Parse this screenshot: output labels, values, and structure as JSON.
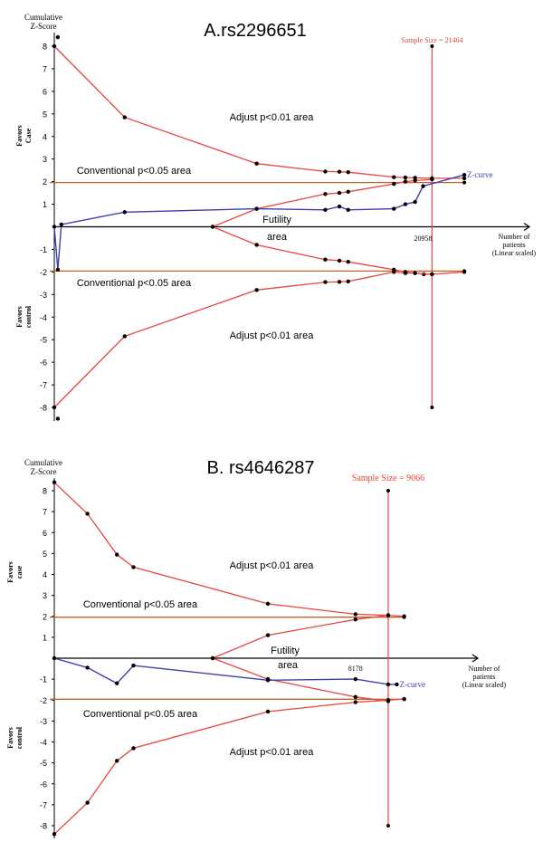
{
  "colors": {
    "boundary": "#e8453c",
    "zcurve": "#3b3fb0",
    "conventional": "#c0632c",
    "sample": "#e8453c",
    "axis": "#000000",
    "sample_label": "#e8453c",
    "zcurve_label": "#3b3fb0"
  },
  "chart_data": [
    {
      "type": "line",
      "title": "A.rs2296651",
      "ylabel": "Cumulative Z-Score",
      "xlabel": "Number of patients (Linear scaled)",
      "xlabel_lines": [
        "Number of",
        "patients",
        "(Linear scaled)"
      ],
      "ylabel_lines": [
        "Cumulative",
        "Z-Score"
      ],
      "favors_top": [
        "Favors",
        "Case"
      ],
      "favors_bottom": [
        "Favors",
        "control"
      ],
      "yticks": [
        8,
        7,
        6,
        5,
        4,
        3,
        2,
        1,
        -1,
        -2,
        -3,
        -4,
        -5,
        -6,
        -7,
        -8
      ],
      "ylim": [
        -8.5,
        8.5
      ],
      "xlim": [
        0,
        27000
      ],
      "x_tick_label": "20958",
      "x_tick_value": 20958,
      "sample_size_value": 21464,
      "sample_size_label": "Sample Size = 21464",
      "zcurve_label": "Z-curve",
      "area_labels": {
        "adjust_top": "Adjust p<0.01 area",
        "conv_top": "Conventional p<0.05 area",
        "futility": "Futility",
        "futility_area": "area",
        "conv_bottom": "Conventional p<0.05 area",
        "adjust_bottom": "Adjust p<0.01 area"
      },
      "conventional_z": 1.96,
      "conventional_end_x": 23300,
      "upper_boundary": [
        [
          0,
          8.0
        ],
        [
          4000,
          4.85
        ],
        [
          11500,
          2.8
        ],
        [
          15400,
          2.45
        ],
        [
          16200,
          2.44
        ],
        [
          16700,
          2.42
        ],
        [
          19300,
          2.2
        ],
        [
          19950,
          2.18
        ],
        [
          20500,
          2.17
        ],
        [
          21464,
          2.15
        ],
        [
          23300,
          2.15
        ]
      ],
      "lower_boundary": [
        [
          0,
          -8.0
        ],
        [
          4000,
          -4.85
        ],
        [
          11500,
          -2.8
        ],
        [
          15400,
          -2.45
        ],
        [
          16200,
          -2.44
        ],
        [
          16700,
          -2.42
        ],
        [
          19300,
          -2.0
        ],
        [
          19950,
          -2.05
        ],
        [
          20500,
          -2.05
        ],
        [
          21000,
          -2.1
        ],
        [
          21464,
          -2.1
        ],
        [
          23300,
          -2.0
        ]
      ],
      "futility_upper": [
        [
          9000,
          0.0
        ],
        [
          11500,
          0.8
        ],
        [
          15400,
          1.45
        ],
        [
          16200,
          1.5
        ],
        [
          16700,
          1.55
        ],
        [
          19300,
          1.9
        ],
        [
          19950,
          2.0
        ],
        [
          20500,
          2.05
        ],
        [
          21464,
          2.1
        ]
      ],
      "futility_lower": [
        [
          9000,
          0.0
        ],
        [
          11500,
          -0.8
        ],
        [
          15400,
          -1.45
        ],
        [
          16200,
          -1.5
        ],
        [
          16700,
          -1.55
        ],
        [
          19300,
          -1.9
        ],
        [
          19950,
          -2.0
        ],
        [
          20500,
          -2.05
        ],
        [
          21464,
          -2.1
        ]
      ],
      "zcurve": [
        [
          0,
          0.0
        ],
        [
          200,
          -1.9
        ],
        [
          400,
          0.1
        ],
        [
          4000,
          0.65
        ],
        [
          11500,
          0.8
        ],
        [
          15400,
          0.75
        ],
        [
          16200,
          0.9
        ],
        [
          16700,
          0.75
        ],
        [
          19300,
          0.8
        ],
        [
          19950,
          1.0
        ],
        [
          20500,
          1.1
        ],
        [
          20958,
          1.8
        ],
        [
          23300,
          2.3
        ]
      ],
      "extra_points": [
        [
          200,
          8.4
        ],
        [
          200,
          -8.5
        ]
      ]
    },
    {
      "type": "line",
      "title": "B. rs4646287",
      "ylabel": "Cumulative Z-Score",
      "xlabel": "Number of patients (Linear scaled)",
      "xlabel_lines": [
        "Number of",
        "patients",
        "(Linear scaled)"
      ],
      "ylabel_lines": [
        "Cumulative",
        "Z-Score"
      ],
      "favors_top": [
        "Favors",
        "case"
      ],
      "favors_bottom": [
        "Favors",
        "control"
      ],
      "yticks": [
        8,
        7,
        6,
        5,
        4,
        3,
        2,
        1,
        -1,
        -2,
        -3,
        -4,
        -5,
        -6,
        -7,
        -8
      ],
      "ylim": [
        -8.5,
        8.5
      ],
      "xlim": [
        0,
        11500
      ],
      "x_tick_label": "8178",
      "x_tick_value": 8178,
      "sample_size_value": 9066,
      "sample_size_label": "Sample Size = 9066",
      "zcurve_label": "Z-curve",
      "area_labels": {
        "adjust_top": "Adjust p<0.01 area",
        "conv_top": "Conventional p<0.05 area",
        "futility": "Futility",
        "futility_area": "area",
        "conv_bottom": "Conventional p<0.05 area",
        "adjust_bottom": "Adjust p<0.01 area"
      },
      "conventional_z": 1.96,
      "conventional_end_x": 9500,
      "upper_boundary": [
        [
          0,
          8.4
        ],
        [
          900,
          6.9
        ],
        [
          1700,
          4.95
        ],
        [
          2150,
          4.35
        ],
        [
          5800,
          2.6
        ],
        [
          8178,
          2.1
        ],
        [
          9066,
          2.05
        ],
        [
          9500,
          2.0
        ]
      ],
      "lower_boundary": [
        [
          0,
          -8.4
        ],
        [
          900,
          -6.9
        ],
        [
          1700,
          -4.9
        ],
        [
          2150,
          -4.3
        ],
        [
          5800,
          -2.55
        ],
        [
          8178,
          -2.1
        ],
        [
          9066,
          -2.0
        ],
        [
          9500,
          -1.95
        ]
      ],
      "futility_upper": [
        [
          4300,
          0.0
        ],
        [
          5800,
          1.1
        ],
        [
          8178,
          1.85
        ],
        [
          9066,
          2.05
        ]
      ],
      "futility_lower": [
        [
          4300,
          0.0
        ],
        [
          5800,
          -1.0
        ],
        [
          8178,
          -1.85
        ],
        [
          9066,
          -2.05
        ]
      ],
      "zcurve": [
        [
          0,
          0.0
        ],
        [
          900,
          -0.45
        ],
        [
          1700,
          -1.2
        ],
        [
          2150,
          -0.35
        ],
        [
          5800,
          -1.05
        ],
        [
          8178,
          -1.0
        ],
        [
          9066,
          -1.25
        ],
        [
          9300,
          -1.25
        ]
      ],
      "extra_points": []
    }
  ]
}
